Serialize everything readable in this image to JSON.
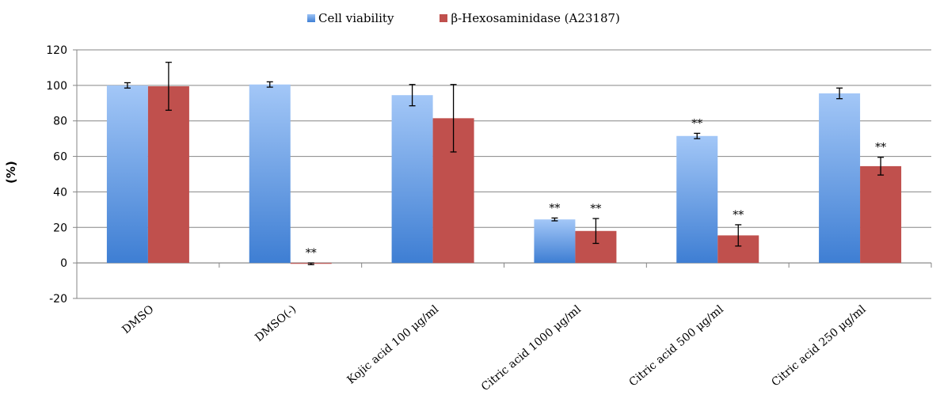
{
  "chart_data": {
    "type": "bar",
    "categories": [
      "DMSO",
      "DMSO(-)",
      "Kojic acid 100 μg/ml",
      "Citric acid 1000 μg/ml",
      "Citric acid 500 μg/ml",
      "Citric acid 250 μg/ml"
    ],
    "series": [
      {
        "name": "Cell viability",
        "color": "#5a93dd",
        "values": [
          100,
          100.5,
          94.5,
          24.5,
          71.5,
          95.5
        ],
        "errors": [
          1.5,
          1.5,
          6,
          0.8,
          1.5,
          3
        ],
        "annotations": [
          "",
          "",
          "",
          "**",
          "**",
          ""
        ]
      },
      {
        "name": "β-Hexosaminidase (A23187)",
        "color": "#c0504d",
        "values": [
          99.5,
          -0.5,
          81.5,
          18,
          15.5,
          54.5
        ],
        "errors": [
          13.5,
          0.5,
          19,
          7,
          6,
          5
        ],
        "annotations": [
          "",
          "**",
          "",
          "**",
          "**",
          "**"
        ]
      }
    ],
    "ylabel": "(%)",
    "ylim": [
      -20,
      120
    ],
    "yticks": [
      -20,
      0,
      20,
      40,
      60,
      80,
      100,
      120
    ],
    "grid": true,
    "legend": "top-center"
  }
}
